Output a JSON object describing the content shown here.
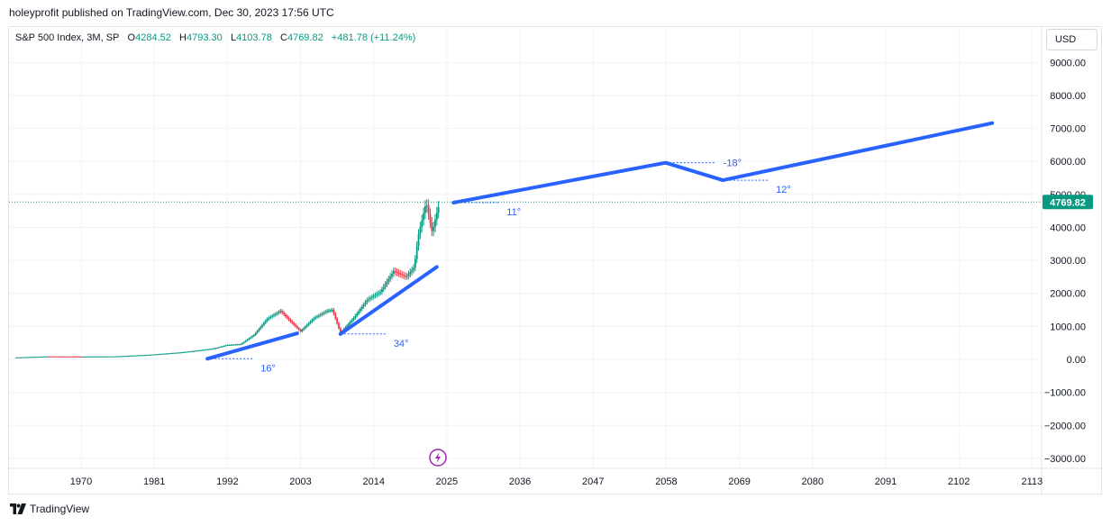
{
  "header": {
    "publish_text": "holeyprofit published on TradingView.com, Dec 30, 2023 17:56 UTC"
  },
  "legend": {
    "symbol": "S&P 500 Index, 3M, SP",
    "open_label": "O",
    "open": "4284.52",
    "high_label": "H",
    "high": "4793.30",
    "low_label": "L",
    "low": "4103.78",
    "close_label": "C",
    "close": "4769.82",
    "change": "+481.78 (+11.24%)"
  },
  "currency_button": {
    "label": "USD"
  },
  "footer": {
    "brand": "TradingView",
    "icon": "tradingview-logo-icon"
  },
  "colors": {
    "accent": "#2962ff",
    "up": "#089981",
    "down": "#f23645",
    "price_tag": "#089981"
  },
  "chart_data": {
    "type": "candlestick",
    "title": "",
    "xlabel": "",
    "ylabel": "",
    "x_ticks": [
      "1970",
      "1981",
      "1992",
      "2003",
      "2014",
      "2025",
      "2036",
      "2047",
      "2058",
      "2069",
      "2080",
      "2091",
      "2102",
      "2113"
    ],
    "y_ticks": [
      "9000.00",
      "8000.00",
      "7000.00",
      "6000.00",
      "5000.00",
      "4000.00",
      "3000.00",
      "2000.00",
      "1000.00",
      "0.00",
      "−1000.00",
      "−2000.00",
      "−3000.00"
    ],
    "xlim": [
      1960,
      2120
    ],
    "ylim": [
      -3300,
      9800
    ],
    "grid": true,
    "current_price": {
      "value": 4769.82,
      "label": "4769.82"
    },
    "price_series": {
      "name": "",
      "points": [
        [
          1960,
          58
        ],
        [
          1965,
          88
        ],
        [
          1970,
          85
        ],
        [
          1975,
          90
        ],
        [
          1980,
          135
        ],
        [
          1985,
          211
        ],
        [
          1988,
          277
        ],
        [
          1990,
          330
        ],
        [
          1992,
          435
        ],
        [
          1994,
          459
        ],
        [
          1996,
          740
        ],
        [
          1998,
          1229
        ],
        [
          2000,
          1469
        ],
        [
          2001.5,
          1150
        ],
        [
          2003,
          850
        ],
        [
          2005,
          1248
        ],
        [
          2007,
          1468
        ],
        [
          2007.8,
          1500
        ],
        [
          2009,
          800
        ],
        [
          2011,
          1257
        ],
        [
          2013,
          1800
        ],
        [
          2015,
          2044
        ],
        [
          2017,
          2673
        ],
        [
          2018.9,
          2500
        ],
        [
          2020.1,
          2800
        ],
        [
          2020.7,
          3756
        ],
        [
          2021.9,
          4766
        ],
        [
          2022.8,
          3840
        ],
        [
          2023.5,
          4450
        ],
        [
          2023.99,
          4769.82
        ]
      ]
    },
    "trendlines": [
      {
        "points": [
          [
            1989,
            20
          ],
          [
            2002.5,
            790
          ]
        ]
      },
      {
        "points": [
          [
            2009,
            770
          ],
          [
            2023.5,
            2800
          ]
        ]
      },
      {
        "points": [
          [
            2026,
            4750
          ],
          [
            2057.9,
            5960
          ],
          [
            2066.5,
            5430
          ],
          [
            2107,
            7160
          ]
        ]
      }
    ],
    "angle_annotations": [
      {
        "label": "16°",
        "at": [
          1989,
          20
        ]
      },
      {
        "label": "34°",
        "at": [
          2009,
          770
        ]
      },
      {
        "label": "11°",
        "at": [
          2026,
          4750
        ]
      },
      {
        "label": "-18°",
        "at": [
          2057.9,
          5960
        ]
      },
      {
        "label": "12°",
        "at": [
          2066.5,
          5430
        ]
      }
    ]
  }
}
